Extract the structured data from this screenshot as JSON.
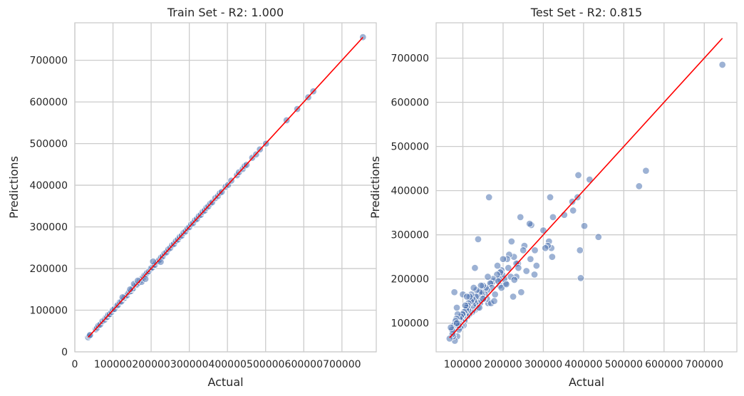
{
  "colors": {
    "background": "#ffffff",
    "grid": "#cccccc",
    "frame": "#cccccc",
    "point_fill": "#4c72b0",
    "point_edge": "#ffffff",
    "fit_line": "#ff0000",
    "text": "#262626"
  },
  "chart_data": [
    {
      "type": "scatter",
      "title": "Train Set - R2: 1.000",
      "xlabel": "Actual",
      "ylabel": "Predictions",
      "xlim": [
        0,
        790000
      ],
      "ylim": [
        0,
        790000
      ],
      "xticks": [
        0,
        100000,
        200000,
        300000,
        400000,
        500000,
        600000,
        700000
      ],
      "xtick_labels": [
        "0",
        "100000",
        "200000",
        "300000",
        "400000",
        "500000",
        "600000",
        "700000"
      ],
      "yticks": [
        0,
        100000,
        200000,
        300000,
        400000,
        500000,
        600000,
        700000
      ],
      "ytick_labels": [
        "0",
        "100000",
        "200000",
        "300000",
        "400000",
        "500000",
        "600000",
        "700000"
      ],
      "grid": true,
      "line": {
        "x": [
          34900,
          755000
        ],
        "y": [
          34900,
          755000
        ]
      },
      "points": {
        "x": [
          34900,
          37900,
          40000,
          55000,
          58500,
          62000,
          66500,
          72500,
          78000,
          82000,
          85000,
          88000,
          91500,
          96500,
          100000,
          104000,
          110000,
          113000,
          118000,
          122000,
          127500,
          130000,
          133000,
          137000,
          140000,
          143000,
          147000,
          150000,
          153000,
          157000,
          160000,
          163000,
          167000,
          170000,
          173000,
          176000,
          180000,
          183000,
          187000,
          190000,
          194000,
          197500,
          200000,
          203000,
          207000,
          210000,
          214000,
          218000,
          222000,
          226000,
          230000,
          235000,
          240000,
          245000,
          250000,
          255000,
          260000,
          265000,
          270000,
          275000,
          280000,
          285000,
          290000,
          295000,
          300000,
          305000,
          310000,
          315000,
          320000,
          325000,
          330000,
          335000,
          340000,
          345000,
          350000,
          355000,
          360000,
          368000,
          375000,
          380000,
          385000,
          395000,
          402000,
          410000,
          425000,
          430000,
          440000,
          445000,
          450000,
          465000,
          475000,
          485000,
          501000,
          555000,
          582900,
          611600,
          625000,
          755000,
          155000,
          175000,
          185000,
          205000,
          225000,
          125000,
          145000,
          165000
        ],
        "y": [
          34900,
          38500,
          40500,
          54000,
          57800,
          63000,
          65500,
          73500,
          77000,
          83000,
          84000,
          89500,
          90500,
          95800,
          101000,
          103000,
          111000,
          112500,
          119500,
          121000,
          128500,
          129500,
          134000,
          136000,
          141500,
          144000,
          146000,
          151000,
          152500,
          158500,
          161000,
          162000,
          166000,
          171500,
          172500,
          177000,
          179000,
          184500,
          186500,
          191000,
          193500,
          198000,
          201500,
          202500,
          208000,
          209000,
          215000,
          217500,
          221500,
          227000,
          229000,
          236000,
          239000,
          246000,
          249500,
          256000,
          259000,
          266000,
          269500,
          276000,
          279000,
          286000,
          289000,
          296000,
          299500,
          306000,
          309000,
          316000,
          319000,
          326000,
          329000,
          336000,
          339000,
          346000,
          349500,
          356000,
          359000,
          369000,
          374000,
          381000,
          384000,
          396000,
          401000,
          411000,
          424000,
          431000,
          439000,
          446000,
          449000,
          466000,
          474000,
          486000,
          500000,
          556000,
          583000,
          611000,
          625500,
          755500,
          163000,
          168000,
          175000,
          217000,
          216000,
          131000,
          150000,
          171000
        ]
      }
    },
    {
      "type": "scatter",
      "title": "Test Set - R2: 0.815",
      "xlabel": "Actual",
      "ylabel": "Predictions",
      "xlim": [
        33600,
        781000
      ],
      "ylim": [
        35000,
        780000
      ],
      "xticks": [
        100000,
        200000,
        300000,
        400000,
        500000,
        600000,
        700000
      ],
      "xtick_labels": [
        "100000",
        "200000",
        "300000",
        "400000",
        "500000",
        "600000",
        "700000"
      ],
      "yticks": [
        100000,
        200000,
        300000,
        400000,
        500000,
        600000,
        700000
      ],
      "ytick_labels": [
        "100000",
        "200000",
        "300000",
        "400000",
        "500000",
        "600000",
        "700000"
      ],
      "grid": true,
      "line": {
        "x": [
          67000,
          745000
        ],
        "y": [
          67000,
          745000
        ]
      },
      "points": {
        "x": [
          745000,
          555000,
          538000,
          415000,
          437000,
          393000,
          402000,
          385000,
          374000,
          372000,
          387000,
          391000,
          352000,
          317000,
          322000,
          320000,
          314000,
          311000,
          324000,
          300000,
          283000,
          279000,
          270000,
          266000,
          268000,
          243000,
          253000,
          225000,
          237000,
          245000,
          250000,
          233000,
          233000,
          221000,
          227000,
          215000,
          213000,
          210000,
          206000,
          200000,
          203000,
          198000,
          192000,
          196000,
          190000,
          193000,
          185000,
          180000,
          186000,
          177000,
          175000,
          171000,
          168000,
          172000,
          165000,
          163000,
          161000,
          160000,
          157000,
          155000,
          152000,
          150000,
          148000,
          146000,
          145000,
          143000,
          142000,
          140000,
          138000,
          137000,
          136000,
          135000,
          134000,
          132000,
          131000,
          130000,
          128000,
          127000,
          126000,
          125000,
          124000,
          123000,
          121000,
          120000,
          119000,
          118000,
          117000,
          116000,
          115000,
          114000,
          113000,
          112000,
          111000,
          110000,
          108000,
          107000,
          106000,
          105000,
          104000,
          103000,
          102000,
          101000,
          100000,
          99000,
          98000,
          97000,
          96000,
          95000,
          94000,
          93000,
          92000,
          91000,
          90000,
          89000,
          88000,
          87000,
          86000,
          85000,
          84000,
          83000,
          82000,
          80000,
          79000,
          78000,
          76000,
          75000,
          74000,
          73000,
          70000,
          67000,
          100000,
          90000,
          85000,
          110000,
          130000,
          150000,
          141000,
          162000,
          170000,
          178000,
          188000,
          196000,
          208000,
          219000,
          228000,
          238000,
          258000,
          278000,
          305000
        ],
        "y": [
          685000,
          445000,
          410000,
          425000,
          295000,
          202000,
          320000,
          385000,
          355000,
          375000,
          435000,
          265000,
          345000,
          385000,
          250000,
          270000,
          285000,
          275000,
          340000,
          310000,
          230000,
          265000,
          322000,
          325000,
          245000,
          340000,
          275000,
          160000,
          235000,
          170000,
          265000,
          235000,
          205000,
          285000,
          250000,
          255000,
          225000,
          245000,
          190000,
          245000,
          200000,
          210000,
          185000,
          220000,
          200000,
          215000,
          210000,
          165000,
          230000,
          195000,
          200000,
          190000,
          190000,
          180000,
          385000,
          145000,
          175000,
          155000,
          180000,
          165000,
          155000,
          185000,
          165000,
          170000,
          185000,
          145000,
          170000,
          150000,
          290000,
          135000,
          160000,
          140000,
          175000,
          160000,
          145000,
          130000,
          150000,
          180000,
          130000,
          140000,
          155000,
          125000,
          165000,
          150000,
          135000,
          125000,
          160000,
          120000,
          135000,
          145000,
          130000,
          140000,
          115000,
          135000,
          130000,
          120000,
          140000,
          110000,
          105000,
          125000,
          95000,
          115000,
          120000,
          120000,
          105000,
          95000,
          105000,
          115000,
          90000,
          100000,
          110000,
          100000,
          85000,
          95000,
          100000,
          120000,
          70000,
          135000,
          110000,
          100000,
          105000,
          60000,
          170000,
          95000,
          70000,
          80000,
          75000,
          85000,
          90000,
          65000,
          165000,
          95000,
          100000,
          160000,
          225000,
          155000,
          135000,
          205000,
          145000,
          150000,
          195000,
          180000,
          188000,
          205000,
          198000,
          225000,
          218000,
          210000,
          270000
        ]
      }
    }
  ]
}
